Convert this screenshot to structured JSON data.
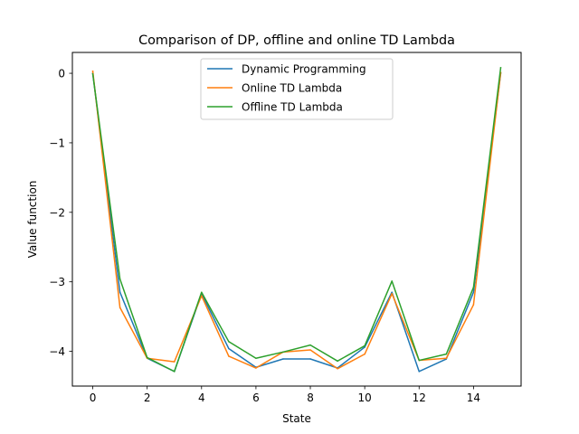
{
  "chart_data": {
    "type": "line",
    "title": "Comparison of DP, offline and online TD Lambda",
    "xlabel": "State",
    "ylabel": "Value function",
    "xlim": [
      -0.75,
      15.75
    ],
    "ylim": [
      -4.5,
      0.3
    ],
    "xticks": [
      0,
      2,
      4,
      6,
      8,
      10,
      12,
      14
    ],
    "yticks": [
      0,
      -1,
      -2,
      -3,
      -4
    ],
    "ytick_labels": [
      "0",
      "−1",
      "−2",
      "−3",
      "−4"
    ],
    "grid": false,
    "legend_position": "top-center",
    "x": [
      0,
      1,
      2,
      3,
      4,
      5,
      6,
      7,
      8,
      9,
      10,
      11,
      12,
      13,
      14,
      15
    ],
    "series": [
      {
        "name": "Dynamic Programming",
        "color": "#1f77b4",
        "values": [
          0,
          -3.15,
          -4.1,
          -4.29,
          -3.17,
          -3.96,
          -4.23,
          -4.11,
          -4.11,
          -4.24,
          -3.94,
          -3.15,
          -4.29,
          -4.11,
          -3.15,
          0
        ]
      },
      {
        "name": "Online TD Lambda",
        "color": "#ff7f0e",
        "values": [
          0.03,
          -3.37,
          -4.1,
          -4.15,
          -3.2,
          -4.07,
          -4.24,
          -4.01,
          -3.98,
          -4.25,
          -4.04,
          -3.17,
          -4.13,
          -4.1,
          -3.33,
          0.01
        ]
      },
      {
        "name": "Offline TD Lambda",
        "color": "#2ca02c",
        "values": [
          -0.01,
          -2.96,
          -4.09,
          -4.29,
          -3.15,
          -3.86,
          -4.1,
          -4.01,
          -3.91,
          -4.14,
          -3.92,
          -2.99,
          -4.13,
          -4.04,
          -3.08,
          0.08
        ]
      }
    ]
  }
}
